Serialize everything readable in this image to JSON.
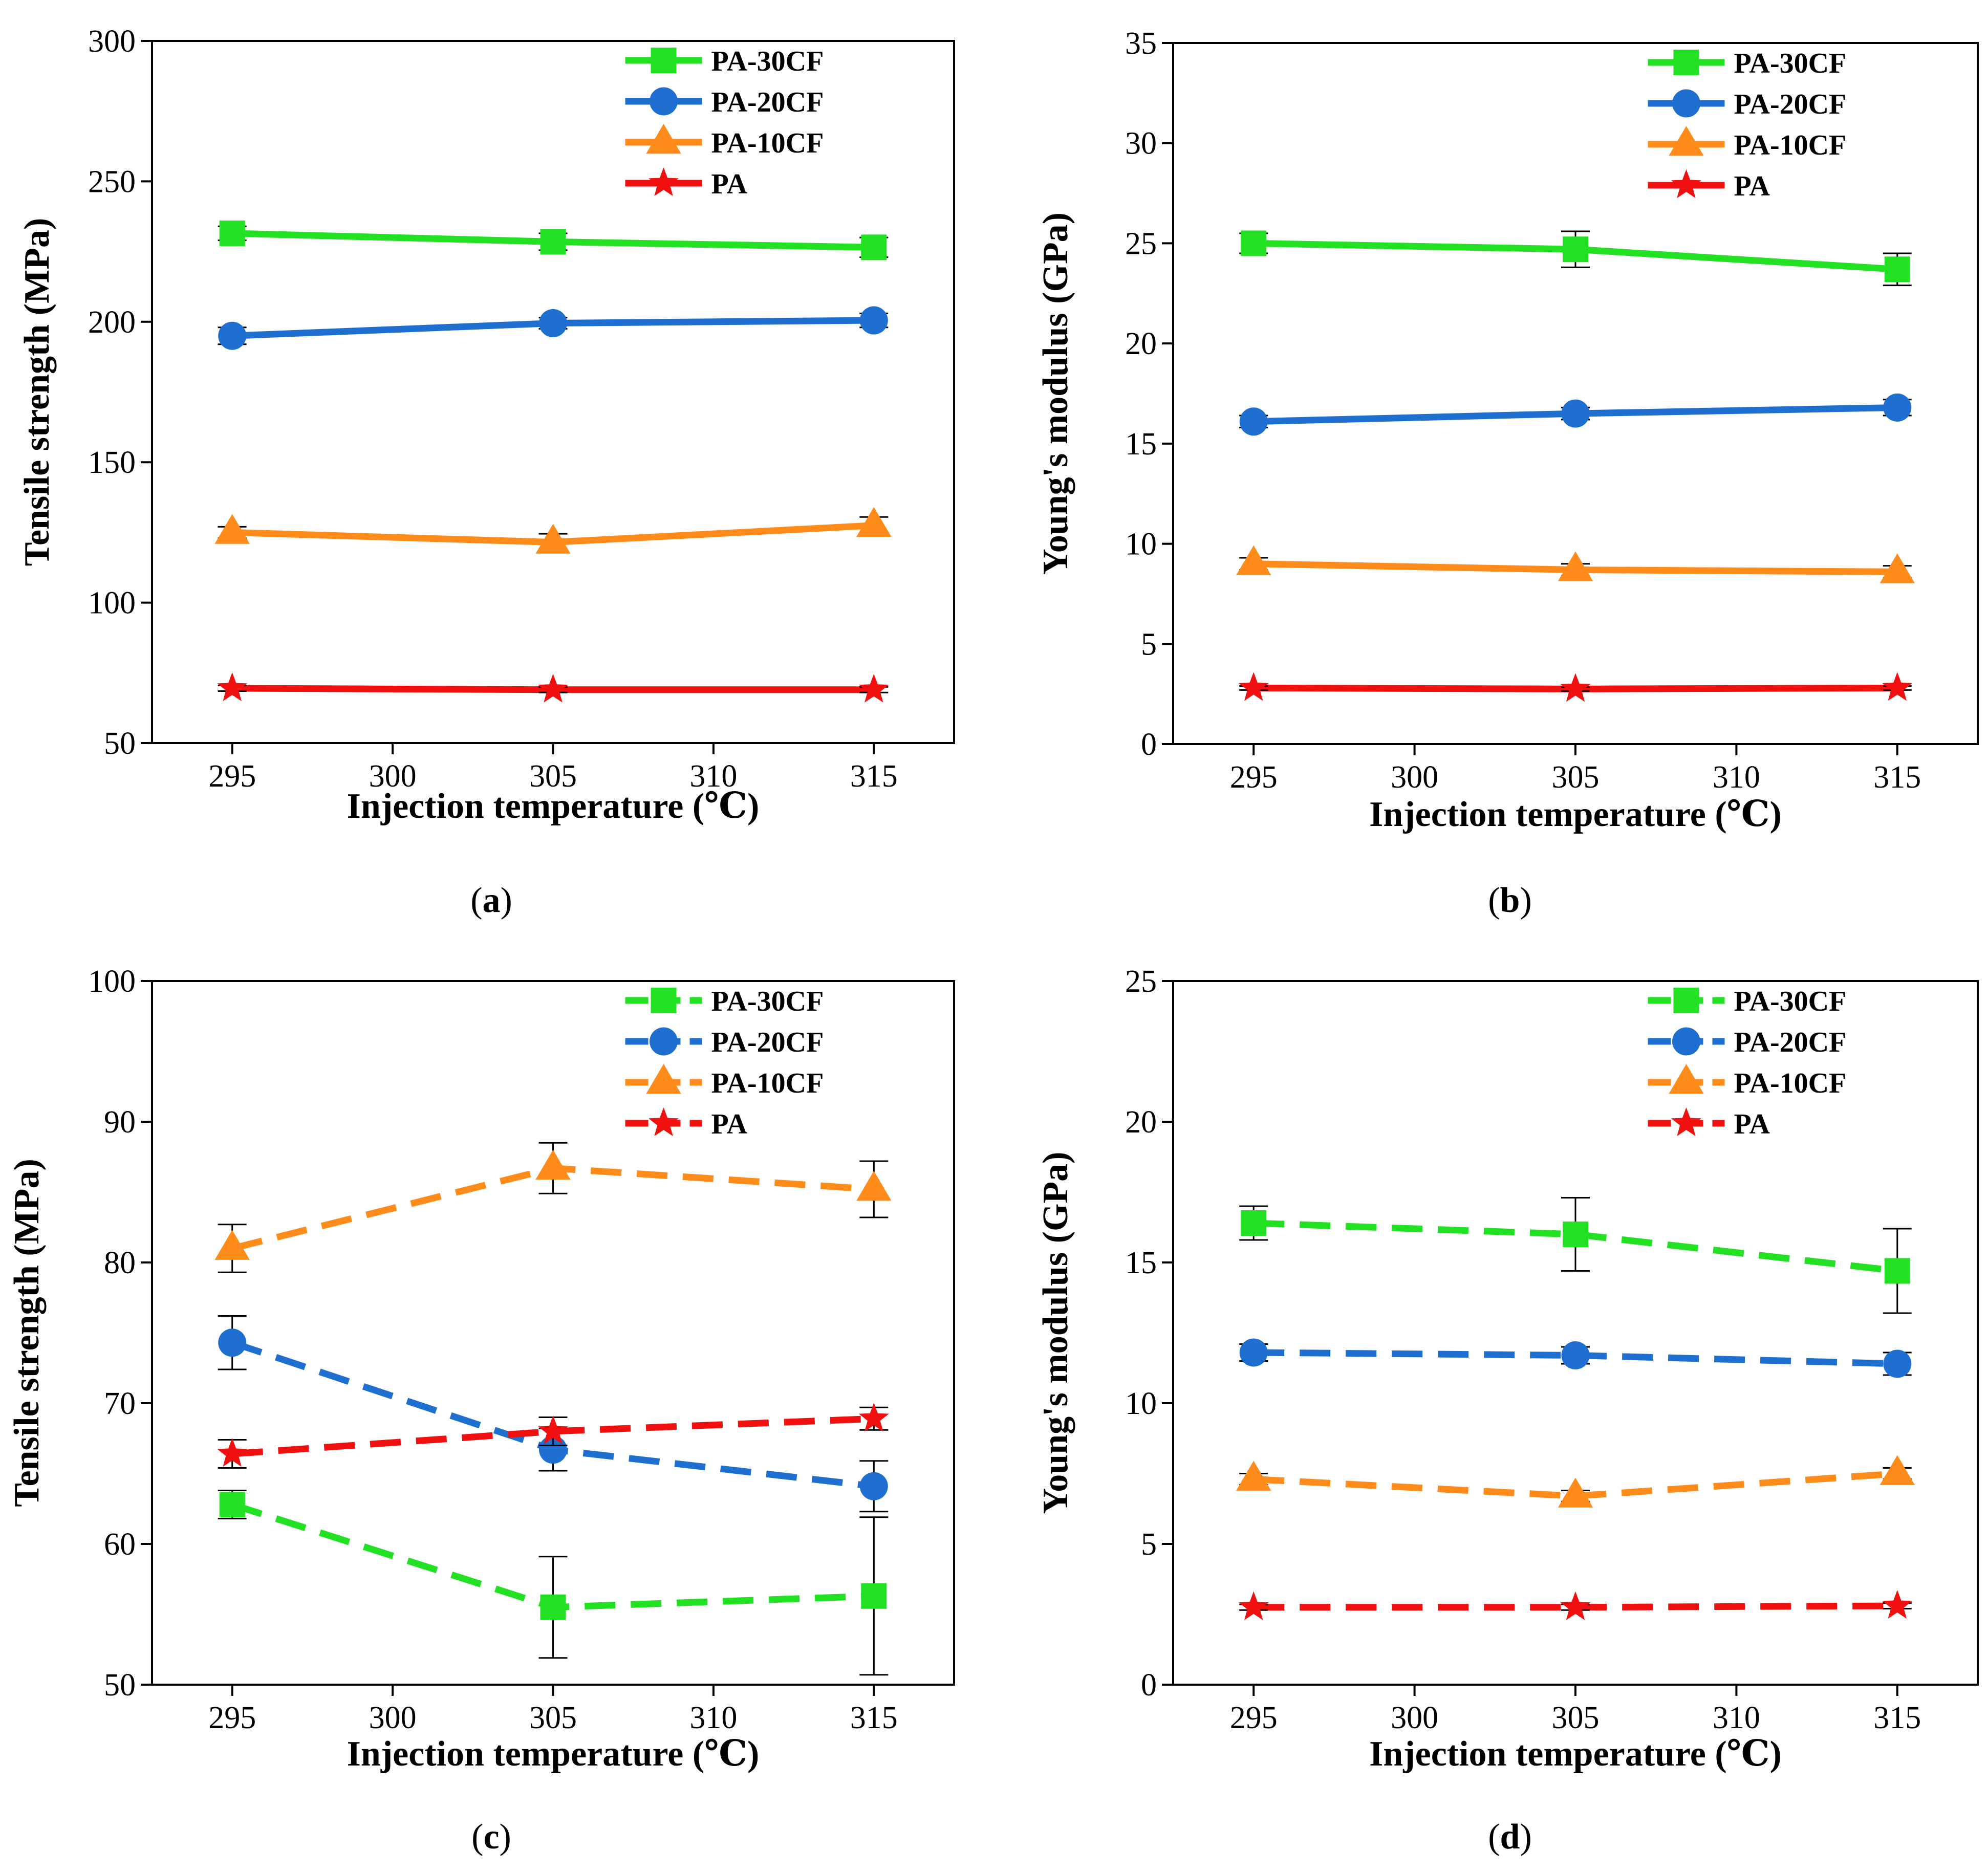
{
  "chart_data": [
    {
      "id": "a",
      "type": "line",
      "caption_letter": "a",
      "xlabel": "Injection temperature (℃)",
      "ylabel": "Tensile strength (MPa)",
      "x": [
        295,
        305,
        315
      ],
      "xticks": [
        295,
        300,
        305,
        310,
        315
      ],
      "xlim": [
        292.5,
        317.5
      ],
      "ylim": [
        50,
        300
      ],
      "yticks": [
        50,
        100,
        150,
        200,
        250,
        300
      ],
      "line_style": "solid",
      "series": [
        {
          "name": "PA-30CF",
          "marker": "square",
          "color": "#22e022",
          "values": [
            231.5,
            228.5,
            226.5
          ],
          "errors": [
            2.5,
            3.0,
            3.5
          ]
        },
        {
          "name": "PA-20CF",
          "marker": "circle",
          "color": "#1e6fd0",
          "values": [
            195,
            199.5,
            200.5
          ],
          "errors": [
            3.0,
            2.0,
            2.5
          ]
        },
        {
          "name": "PA-10CF",
          "marker": "triangle",
          "color": "#ff8c1a",
          "values": [
            125,
            121.5,
            127.5
          ],
          "errors": [
            2.0,
            3.0,
            3.0
          ]
        },
        {
          "name": "PA",
          "marker": "star",
          "color": "#f01010",
          "values": [
            69.5,
            69,
            69
          ],
          "errors": [
            1.0,
            1.0,
            1.0
          ]
        }
      ]
    },
    {
      "id": "b",
      "type": "line",
      "caption_letter": "b",
      "xlabel": "Injection temperature (℃)",
      "ylabel": "Young's modulus (GPa)",
      "x": [
        295,
        305,
        315
      ],
      "xticks": [
        295,
        300,
        305,
        310,
        315
      ],
      "xlim": [
        292.5,
        317.5
      ],
      "ylim": [
        0,
        35
      ],
      "yticks": [
        0,
        5,
        10,
        15,
        20,
        25,
        30,
        35
      ],
      "line_style": "solid",
      "series": [
        {
          "name": "PA-30CF",
          "marker": "square",
          "color": "#22e022",
          "values": [
            25.0,
            24.7,
            23.7
          ],
          "errors": [
            0.5,
            0.9,
            0.8
          ]
        },
        {
          "name": "PA-20CF",
          "marker": "circle",
          "color": "#1e6fd0",
          "values": [
            16.1,
            16.5,
            16.8
          ],
          "errors": [
            0.3,
            0.3,
            0.4
          ]
        },
        {
          "name": "PA-10CF",
          "marker": "triangle",
          "color": "#ff8c1a",
          "values": [
            9.0,
            8.7,
            8.6
          ],
          "errors": [
            0.3,
            0.3,
            0.3
          ]
        },
        {
          "name": "PA",
          "marker": "star",
          "color": "#f01010",
          "values": [
            2.8,
            2.75,
            2.8
          ],
          "errors": [
            0.1,
            0.1,
            0.1
          ]
        }
      ]
    },
    {
      "id": "c",
      "type": "line",
      "caption_letter": "c",
      "xlabel": "Injection temperature (℃)",
      "ylabel": "Tensile strength (MPa)",
      "x": [
        295,
        305,
        315
      ],
      "xticks": [
        295,
        300,
        305,
        310,
        315
      ],
      "xlim": [
        292.5,
        317.5
      ],
      "ylim": [
        50,
        100
      ],
      "yticks": [
        50,
        60,
        70,
        80,
        90,
        100
      ],
      "line_style": "dashed",
      "series": [
        {
          "name": "PA-30CF",
          "marker": "square",
          "color": "#22e022",
          "values": [
            62.8,
            55.5,
            56.3
          ],
          "errors": [
            1.0,
            3.6,
            5.6
          ]
        },
        {
          "name": "PA-20CF",
          "marker": "circle",
          "color": "#1e6fd0",
          "values": [
            74.3,
            66.7,
            64.1
          ],
          "errors": [
            1.9,
            1.5,
            1.8
          ]
        },
        {
          "name": "PA-10CF",
          "marker": "triangle",
          "color": "#ff8c1a",
          "values": [
            81.0,
            86.7,
            85.2
          ],
          "errors": [
            1.7,
            1.8,
            2.0
          ]
        },
        {
          "name": "PA",
          "marker": "star",
          "color": "#f01010",
          "values": [
            66.4,
            68.0,
            68.9
          ],
          "errors": [
            1.0,
            1.0,
            0.8
          ]
        }
      ]
    },
    {
      "id": "d",
      "type": "line",
      "caption_letter": "d",
      "xlabel": "Injection temperature (℃)",
      "ylabel": "Young's modulus (GPa)",
      "x": [
        295,
        305,
        315
      ],
      "xticks": [
        295,
        300,
        305,
        310,
        315
      ],
      "xlim": [
        292.5,
        317.5
      ],
      "ylim": [
        0,
        25
      ],
      "yticks": [
        0,
        5,
        10,
        15,
        20,
        25
      ],
      "line_style": "dashed",
      "series": [
        {
          "name": "PA-30CF",
          "marker": "square",
          "color": "#22e022",
          "values": [
            16.4,
            16.0,
            14.7
          ],
          "errors": [
            0.6,
            1.3,
            1.5
          ]
        },
        {
          "name": "PA-20CF",
          "marker": "circle",
          "color": "#1e6fd0",
          "values": [
            11.8,
            11.7,
            11.4
          ],
          "errors": [
            0.3,
            0.3,
            0.4
          ]
        },
        {
          "name": "PA-10CF",
          "marker": "triangle",
          "color": "#ff8c1a",
          "values": [
            7.3,
            6.7,
            7.5
          ],
          "errors": [
            0.2,
            0.2,
            0.2
          ]
        },
        {
          "name": "PA",
          "marker": "star",
          "color": "#f01010",
          "values": [
            2.75,
            2.75,
            2.8
          ],
          "errors": [
            0.1,
            0.1,
            0.1
          ]
        }
      ]
    }
  ]
}
